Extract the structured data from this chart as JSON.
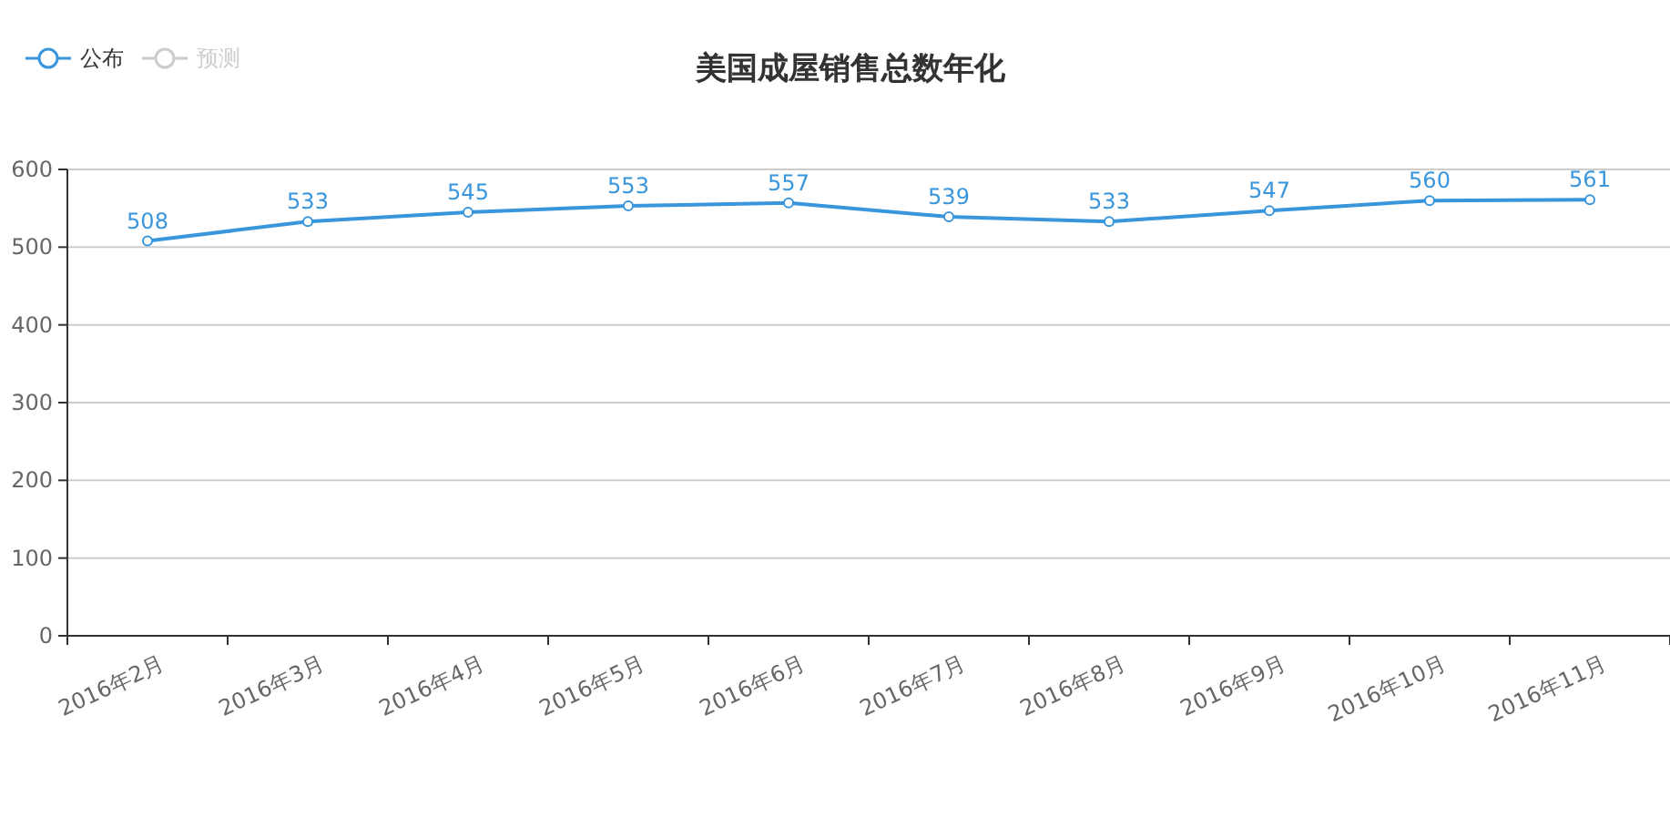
{
  "chart_data": {
    "type": "line",
    "title": "美国成屋销售总数年化",
    "categories": [
      "2016年2月",
      "2016年3月",
      "2016年4月",
      "2016年5月",
      "2016年6月",
      "2016年7月",
      "2016年8月",
      "2016年9月",
      "2016年10月",
      "2016年11月"
    ],
    "series": [
      {
        "name": "公布",
        "color": "#3a96dc",
        "values": [
          508,
          533,
          545,
          553,
          557,
          539,
          533,
          547,
          560,
          561
        ]
      },
      {
        "name": "预测",
        "color": "#cccccc",
        "values": [
          null,
          null,
          null,
          null,
          null,
          null,
          null,
          null,
          null,
          null
        ]
      }
    ],
    "ylim": [
      0,
      600
    ],
    "yticks": [
      0,
      100,
      200,
      300,
      400,
      500,
      600
    ],
    "grid": "y",
    "legend": "top left",
    "marker": "circle",
    "data_labels": true
  }
}
